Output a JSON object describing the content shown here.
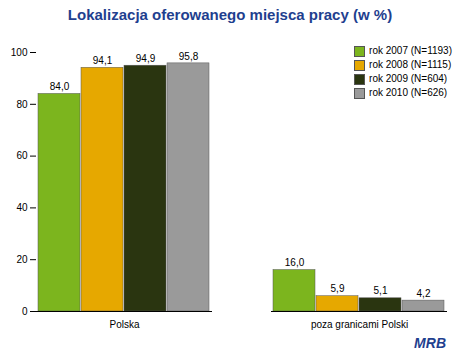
{
  "chart_data": {
    "type": "bar",
    "title": "Lokalizacja oferowanego miejsca pracy (w %)",
    "categories": [
      "Polska",
      "poza granicami Polski"
    ],
    "series": [
      {
        "name": "rok 2007 (N=1193)",
        "color": "#7cb51e",
        "values": [
          84.0,
          16.0
        ],
        "value_labels": [
          "84,0",
          "16,0"
        ]
      },
      {
        "name": "rok 2008 (N=1115)",
        "color": "#e6a800",
        "values": [
          94.1,
          5.9
        ],
        "value_labels": [
          "94,1",
          "5,9"
        ]
      },
      {
        "name": "rok 2009 (N=604)",
        "color": "#2a3510",
        "values": [
          94.9,
          5.1
        ],
        "value_labels": [
          "94,9",
          "5,1"
        ]
      },
      {
        "name": "rok 2010 (N=626)",
        "color": "#9a9a9a",
        "values": [
          95.8,
          4.2
        ],
        "value_labels": [
          "95,8",
          "4,2"
        ]
      }
    ],
    "ylim": [
      0,
      100
    ],
    "yticks": [
      0,
      20,
      40,
      60,
      80,
      100
    ],
    "grid": false,
    "legend": "top-right",
    "data_labels": true,
    "annotations": [
      "MRB"
    ]
  }
}
